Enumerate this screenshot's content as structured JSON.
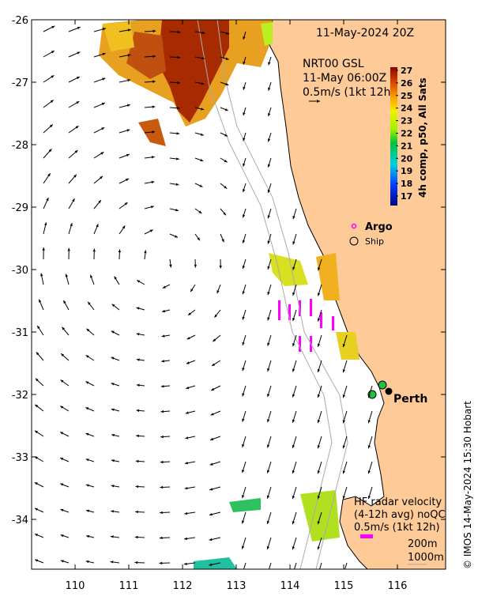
{
  "title": "11-May-2024 20Z",
  "vector_legend": {
    "line1": "NRT00 GSL",
    "line2": "11-May 06:00Z",
    "line3": "0.5m/s (1kt 12h)"
  },
  "colorbar": {
    "label": "4h comp, p50, All Sats",
    "ticks": [
      "27",
      "26",
      "25",
      "24",
      "23",
      "22",
      "21",
      "20",
      "19",
      "18",
      "17"
    ],
    "range": [
      16.5,
      27.5
    ]
  },
  "markers": {
    "argo": "Argo",
    "ship": "Ship"
  },
  "city": "Perth",
  "hf_legend": {
    "line1": "HF radar velocity",
    "line2": "(4-12h avg) noQC",
    "line3": "0.5m/s (1kt 12h)"
  },
  "isobaths": {
    "a": "200m",
    "b": "1000m"
  },
  "credit": "© IMOS 14-May-2024 15:30 Hobart",
  "axes": {
    "x_ticks": [
      "110",
      "111",
      "112",
      "113",
      "114",
      "115",
      "116"
    ],
    "y_ticks": [
      "-26",
      "-27",
      "-28",
      "-29",
      "-30",
      "-31",
      "-32",
      "-33",
      "-34"
    ],
    "lon_range": [
      109.2,
      116.9
    ],
    "lat_range": [
      -26,
      -34.8
    ]
  },
  "colors": {
    "land": "#fdca98",
    "argo": "#ff00ff"
  }
}
